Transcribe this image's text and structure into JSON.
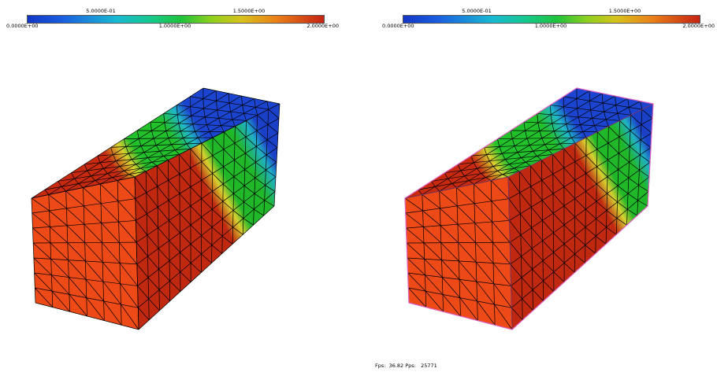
{
  "colorbar": {
    "ticks_top": [
      "5.0000E-01",
      "1.5000E+00"
    ],
    "ticks_bottom": [
      "0.0000E+00",
      "1.0000E+00",
      "2.0000E+00"
    ],
    "range": [
      0,
      2
    ],
    "colors": [
      "#1236c4",
      "#19b9d2",
      "#1fc23a",
      "#ea8018",
      "#c52212"
    ]
  },
  "viewports": {
    "left": {
      "selection_outline": false
    },
    "right": {
      "selection_outline": true,
      "outline_color": "#e060c0"
    }
  },
  "status": {
    "fps_label": "Fps:  36.82 Pps:   25771"
  }
}
